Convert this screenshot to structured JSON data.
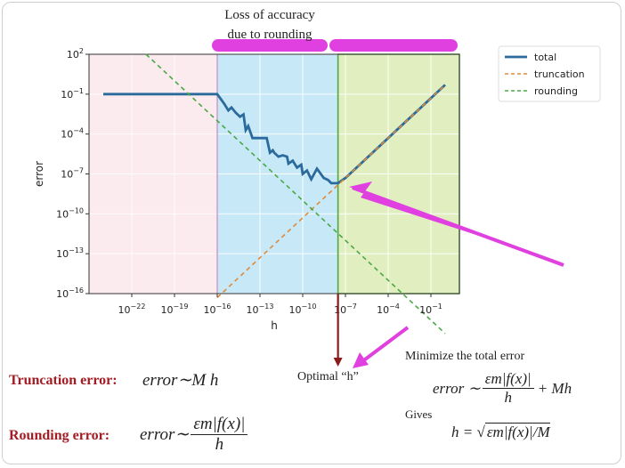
{
  "chart_data": {
    "type": "line",
    "xlabel": "h",
    "ylabel": "error",
    "x_scale": "log",
    "y_scale": "log",
    "xlim": [
      1e-25,
      10
    ],
    "ylim": [
      1e-16,
      100
    ],
    "grid": true,
    "legend_position": "top-right",
    "x_ticks": [
      {
        "value": 1e-22,
        "base": "10",
        "exp": "−22"
      },
      {
        "value": 1e-19,
        "base": "10",
        "exp": "−19"
      },
      {
        "value": 1e-16,
        "base": "10",
        "exp": "−16"
      },
      {
        "value": 1e-13,
        "base": "10",
        "exp": "−13"
      },
      {
        "value": 1e-10,
        "base": "10",
        "exp": "−10"
      },
      {
        "value": 1e-07,
        "base": "10",
        "exp": "−7"
      },
      {
        "value": 0.0001,
        "base": "10",
        "exp": "−4"
      },
      {
        "value": 0.1,
        "base": "10",
        "exp": "−1"
      }
    ],
    "y_ticks": [
      {
        "value": 100,
        "base": "10",
        "exp": "2"
      },
      {
        "value": 0.1,
        "base": "10",
        "exp": "−1"
      },
      {
        "value": 0.0001,
        "base": "10",
        "exp": "−4"
      },
      {
        "value": 1e-07,
        "base": "10",
        "exp": "−7"
      },
      {
        "value": 1e-10,
        "base": "10",
        "exp": "−10"
      },
      {
        "value": 1e-13,
        "base": "10",
        "exp": "−13"
      },
      {
        "value": 1e-16,
        "base": "10",
        "exp": "−16"
      }
    ],
    "regions": [
      {
        "from": 1e-25,
        "to": 1e-16,
        "color": "#fbeaee"
      },
      {
        "from": 1e-16,
        "to": 3e-08,
        "color": "#c6e8f7"
      },
      {
        "from": 3e-08,
        "to": 10,
        "color": "#e1efc0"
      }
    ],
    "series": [
      {
        "name": "total",
        "color": "#2b6a9c",
        "style": "solid",
        "x": [
          1e-24,
          1e-22,
          1e-20,
          1e-18,
          1e-16,
          3e-16,
          6e-16,
          1e-15,
          2e-15,
          4e-15,
          7e-15,
          1e-14,
          1.5e-14,
          3e-14,
          6e-14,
          1e-13,
          3e-13,
          5e-13,
          8e-13,
          1e-12,
          2e-12,
          4e-12,
          8e-12,
          1e-11,
          2e-11,
          4e-11,
          8e-11,
          1e-10,
          2e-10,
          4e-10,
          1e-09,
          3e-09,
          6e-09,
          1e-08,
          3e-08,
          1e-07,
          1e-06,
          1e-05,
          0.0001,
          0.001,
          0.01,
          0.1,
          1
        ],
        "y": [
          0.1,
          0.1,
          0.1,
          0.1,
          0.1,
          0.02,
          0.006,
          0.01,
          0.004,
          0.002,
          0.003,
          0.0002,
          0.0004,
          5e-05,
          5e-05,
          5e-05,
          5e-05,
          4e-06,
          6e-06,
          4e-06,
          2e-06,
          2.5e-06,
          2e-06,
          6e-07,
          1e-06,
          3e-07,
          5e-07,
          1e-07,
          1.8e-07,
          4e-08,
          2.5e-07,
          5e-08,
          3.5e-08,
          2e-08,
          2e-08,
          5e-08,
          5e-07,
          5e-06,
          5e-05,
          0.0005,
          0.005,
          0.05,
          0.5
        ]
      },
      {
        "name": "truncation",
        "color": "#e08a3a",
        "style": "dashed",
        "x": [
          1e-16,
          1
        ],
        "y": [
          5e-17,
          0.5
        ]
      },
      {
        "name": "rounding",
        "color": "#4aa845",
        "style": "dashed",
        "x": [
          1e-21,
          1
        ],
        "y": [
          100,
          1e-19
        ]
      }
    ]
  },
  "annotations": {
    "top_label_line1": "Loss of accuracy",
    "top_label_line2": "due to rounding",
    "highlight_color": "#e040e0",
    "arrow_color": "#8b1a1a",
    "optimal_label": "Optimal “h”",
    "truncation_label": "Truncation error:",
    "truncation_formula": "error∼M h",
    "rounding_label": "Rounding error:",
    "rounding_formula_prefix": "error∼",
    "rounding_formula_num": "εm|f(x)|",
    "rounding_formula_den": "h",
    "minimize_label": "Minimize the total error",
    "minimize_prefix": "error ∼",
    "minimize_num": "εm|f(x)|",
    "minimize_den": "h",
    "minimize_suffix": "+ Mh",
    "gives_label": "Gives",
    "h_prefix": "h = √",
    "h_radicand": "εm|f(x)|/M"
  }
}
